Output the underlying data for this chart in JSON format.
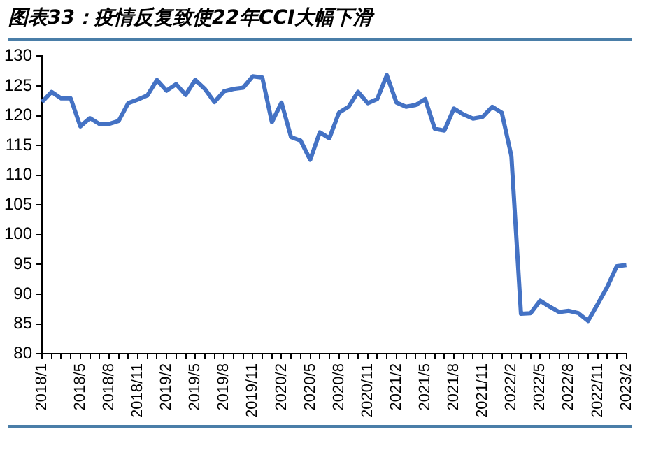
{
  "chart_data": {
    "type": "line",
    "title": "图表33：疫情反复致使22年CCI大幅下滑",
    "categories": [
      "2018/1",
      null,
      null,
      null,
      "2018/5",
      null,
      null,
      "2018/8",
      null,
      null,
      "2018/11",
      null,
      null,
      "2019/2",
      null,
      null,
      "2019/5",
      null,
      null,
      "2019/8",
      null,
      null,
      "2019/11",
      null,
      null,
      "2020/2",
      null,
      null,
      "2020/5",
      null,
      null,
      "2020/8",
      null,
      null,
      "2020/11",
      null,
      null,
      "2021/2",
      null,
      null,
      "2021/5",
      null,
      null,
      "2021/8",
      null,
      null,
      "2021/11",
      null,
      null,
      "2022/2",
      null,
      null,
      "2022/5",
      null,
      null,
      "2022/8",
      null,
      null,
      "2022/11",
      null,
      null,
      "2023/2"
    ],
    "series": [
      {
        "color": "#4472c4",
        "values": [
          122.3,
          124.0,
          122.9,
          122.9,
          118.2,
          119.6,
          118.6,
          118.6,
          119.1,
          122.1,
          122.7,
          123.4,
          126.0,
          124.2,
          125.3,
          123.5,
          126.0,
          124.5,
          122.3,
          124.1,
          124.5,
          124.7,
          126.6,
          126.4,
          118.9,
          122.2,
          116.4,
          115.8,
          112.6,
          117.2,
          116.2,
          120.5,
          121.5,
          124.0,
          122.1,
          122.8,
          126.8,
          122.2,
          121.5,
          121.8,
          122.8,
          117.8,
          117.5,
          121.2,
          120.2,
          119.5,
          119.8,
          121.5,
          120.5,
          113.2,
          86.7,
          86.8,
          88.9,
          87.9,
          87.0,
          87.2,
          86.8,
          85.5,
          88.3,
          91.2,
          94.7,
          94.9
        ]
      }
    ],
    "ylim": [
      80,
      130
    ],
    "yticks": [
      80,
      85,
      90,
      95,
      100,
      105,
      110,
      115,
      120,
      125,
      130
    ],
    "grid": false,
    "legend": false,
    "marker": "none",
    "line_style": "solid"
  }
}
